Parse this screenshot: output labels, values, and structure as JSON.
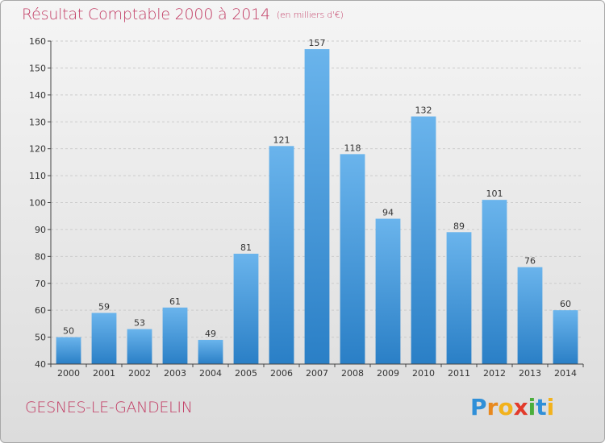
{
  "title": "Résultat Comptable 2000 à 2014",
  "unit": "(en milliers d'€)",
  "commune": "GESNES-LE-GANDELIN",
  "brand": {
    "letters": [
      {
        "ch": "P",
        "color": "#2f8fd8"
      },
      {
        "ch": "r",
        "color": "#e8891e"
      },
      {
        "ch": "o",
        "color": "#f2b21c"
      },
      {
        "ch": "x",
        "color": "#e23a2b"
      },
      {
        "ch": "i",
        "color": "#4aae3b"
      },
      {
        "ch": "t",
        "color": "#2f8fd8"
      },
      {
        "ch": "i",
        "color": "#f2b21c"
      }
    ]
  },
  "colors": {
    "title": "#c23c64",
    "bar_top": "#6ab4ec",
    "bar_bottom": "#2a7fc6",
    "grid": "#cccccc"
  },
  "chart_data": {
    "type": "bar",
    "title": "Résultat Comptable 2000 à 2014",
    "subtitle": "(en milliers d'€)",
    "xlabel": "",
    "ylabel": "",
    "categories": [
      "2000",
      "2001",
      "2002",
      "2003",
      "2004",
      "2005",
      "2006",
      "2007",
      "2008",
      "2009",
      "2010",
      "2011",
      "2012",
      "2013",
      "2014"
    ],
    "values": [
      50,
      59,
      53,
      61,
      49,
      81,
      121,
      157,
      118,
      94,
      132,
      89,
      101,
      76,
      60
    ],
    "ylim": [
      40,
      160
    ],
    "yticks": [
      40,
      50,
      60,
      70,
      80,
      90,
      100,
      110,
      120,
      130,
      140,
      150,
      160
    ],
    "grid": true
  }
}
